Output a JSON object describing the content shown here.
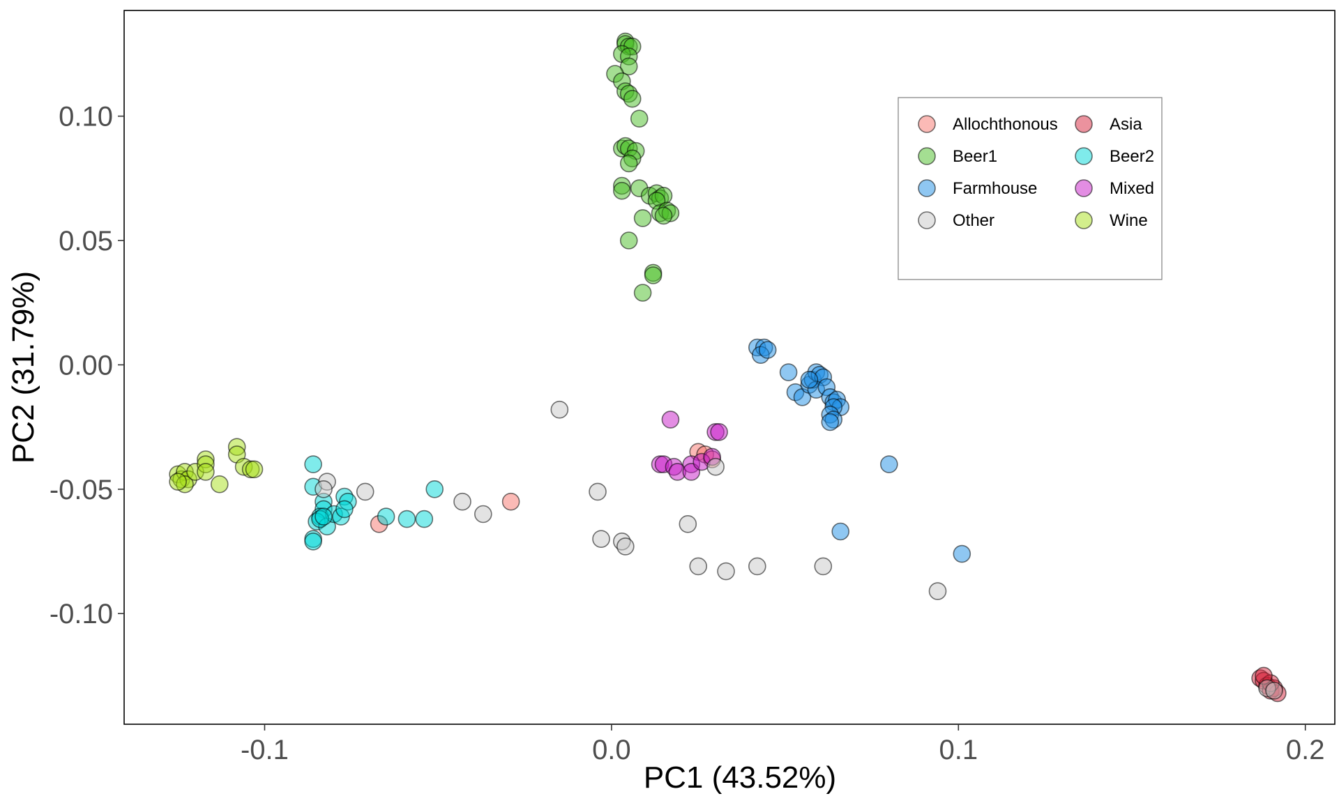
{
  "chart_data": {
    "type": "scatter",
    "title": "",
    "xlabel": "PC1 (43.52%)",
    "ylabel": "PC2 (31.79%)",
    "xlim": [
      -0.1405,
      0.2085
    ],
    "ylim": [
      -0.1445,
      0.1425
    ],
    "xticks": [
      -0.1,
      0.0,
      0.1,
      0.2
    ],
    "xtick_labels": [
      "-0.1",
      "0.0",
      "0.1",
      "0.2"
    ],
    "yticks": [
      -0.1,
      -0.05,
      0.0,
      0.05,
      0.1
    ],
    "ytick_labels": [
      "-0.10",
      "-0.05",
      "0.00",
      "0.05",
      "0.10"
    ],
    "grid": false,
    "legend_position": "top-right",
    "point_alpha": 0.5,
    "series": [
      {
        "name": "Allochthonous",
        "color": "#F8766D",
        "points": [
          [
            -0.067,
            -0.064
          ],
          [
            -0.029,
            -0.055
          ],
          [
            0.025,
            -0.035
          ],
          [
            0.027,
            -0.036
          ],
          [
            0.029,
            -0.038
          ]
        ]
      },
      {
        "name": "Asia",
        "color": "#D7263D",
        "points": [
          [
            0.187,
            -0.126
          ],
          [
            0.188,
            -0.127
          ],
          [
            0.189,
            -0.129
          ],
          [
            0.19,
            -0.131
          ],
          [
            0.191,
            -0.13
          ],
          [
            0.192,
            -0.132
          ],
          [
            0.19,
            -0.128
          ],
          [
            0.188,
            -0.125
          ]
        ]
      },
      {
        "name": "Beer1",
        "color": "#49BE25",
        "points": [
          [
            0.004,
            0.13
          ],
          [
            0.004,
            0.129
          ],
          [
            0.005,
            0.128
          ],
          [
            0.006,
            0.128
          ],
          [
            0.003,
            0.125
          ],
          [
            0.005,
            0.124
          ],
          [
            0.005,
            0.12
          ],
          [
            0.001,
            0.117
          ],
          [
            0.003,
            0.114
          ],
          [
            0.004,
            0.11
          ],
          [
            0.005,
            0.109
          ],
          [
            0.006,
            0.107
          ],
          [
            0.008,
            0.099
          ],
          [
            0.003,
            0.087
          ],
          [
            0.004,
            0.088
          ],
          [
            0.005,
            0.087
          ],
          [
            0.007,
            0.086
          ],
          [
            0.006,
            0.083
          ],
          [
            0.005,
            0.081
          ],
          [
            0.003,
            0.072
          ],
          [
            0.003,
            0.07
          ],
          [
            0.008,
            0.071
          ],
          [
            0.011,
            0.068
          ],
          [
            0.013,
            0.069
          ],
          [
            0.014,
            0.067
          ],
          [
            0.015,
            0.068
          ],
          [
            0.013,
            0.066
          ],
          [
            0.014,
            0.061
          ],
          [
            0.016,
            0.062
          ],
          [
            0.017,
            0.061
          ],
          [
            0.015,
            0.06
          ],
          [
            0.009,
            0.059
          ],
          [
            0.005,
            0.05
          ],
          [
            0.012,
            0.037
          ],
          [
            0.012,
            0.036
          ],
          [
            0.009,
            0.029
          ]
        ]
      },
      {
        "name": "Beer2",
        "color": "#00D7D7",
        "points": [
          [
            -0.086,
            -0.04
          ],
          [
            -0.086,
            -0.049
          ],
          [
            -0.083,
            -0.055
          ],
          [
            -0.083,
            -0.058
          ],
          [
            -0.084,
            -0.061
          ],
          [
            -0.085,
            -0.063
          ],
          [
            -0.082,
            -0.065
          ],
          [
            -0.08,
            -0.06
          ],
          [
            -0.078,
            -0.061
          ],
          [
            -0.077,
            -0.053
          ],
          [
            -0.076,
            -0.055
          ],
          [
            -0.077,
            -0.058
          ],
          [
            -0.084,
            -0.062
          ],
          [
            -0.083,
            -0.061
          ],
          [
            -0.086,
            -0.07
          ],
          [
            -0.086,
            -0.071
          ],
          [
            -0.065,
            -0.061
          ],
          [
            -0.054,
            -0.062
          ],
          [
            -0.051,
            -0.05
          ],
          [
            -0.059,
            -0.062
          ]
        ]
      },
      {
        "name": "Farmhouse",
        "color": "#1F8FE5",
        "points": [
          [
            0.042,
            0.007
          ],
          [
            0.044,
            0.007
          ],
          [
            0.043,
            0.004
          ],
          [
            0.045,
            0.006
          ],
          [
            0.051,
            -0.003
          ],
          [
            0.053,
            -0.011
          ],
          [
            0.055,
            -0.013
          ],
          [
            0.057,
            -0.008
          ],
          [
            0.058,
            -0.006
          ],
          [
            0.059,
            -0.003
          ],
          [
            0.06,
            -0.004
          ],
          [
            0.061,
            -0.005
          ],
          [
            0.059,
            -0.01
          ],
          [
            0.057,
            -0.006
          ],
          [
            0.062,
            -0.009
          ],
          [
            0.063,
            -0.013
          ],
          [
            0.064,
            -0.015
          ],
          [
            0.065,
            -0.014
          ],
          [
            0.066,
            -0.017
          ],
          [
            0.064,
            -0.017
          ],
          [
            0.063,
            -0.02
          ],
          [
            0.064,
            -0.022
          ],
          [
            0.063,
            -0.023
          ],
          [
            0.08,
            -0.04
          ],
          [
            0.066,
            -0.067
          ],
          [
            0.101,
            -0.076
          ]
        ]
      },
      {
        "name": "Mixed",
        "color": "#C71CC7",
        "points": [
          [
            0.017,
            -0.022
          ],
          [
            0.014,
            -0.04
          ],
          [
            0.015,
            -0.04
          ],
          [
            0.018,
            -0.041
          ],
          [
            0.019,
            -0.043
          ],
          [
            0.023,
            -0.04
          ],
          [
            0.023,
            -0.043
          ],
          [
            0.026,
            -0.039
          ],
          [
            0.029,
            -0.037
          ],
          [
            0.03,
            -0.027
          ],
          [
            0.031,
            -0.027
          ]
        ]
      },
      {
        "name": "Other",
        "color": "#C8C8C8",
        "points": [
          [
            -0.015,
            -0.018
          ],
          [
            -0.082,
            -0.047
          ],
          [
            -0.083,
            -0.05
          ],
          [
            -0.071,
            -0.051
          ],
          [
            -0.043,
            -0.055
          ],
          [
            -0.037,
            -0.06
          ],
          [
            -0.004,
            -0.051
          ],
          [
            -0.003,
            -0.07
          ],
          [
            0.003,
            -0.071
          ],
          [
            0.004,
            -0.073
          ],
          [
            0.022,
            -0.064
          ],
          [
            0.025,
            -0.081
          ],
          [
            0.03,
            -0.041
          ],
          [
            0.033,
            -0.083
          ],
          [
            0.042,
            -0.081
          ],
          [
            0.061,
            -0.081
          ],
          [
            0.094,
            -0.091
          ],
          [
            0.189,
            -0.13
          ],
          [
            0.191,
            -0.131
          ]
        ]
      },
      {
        "name": "Wine",
        "color": "#A8E01A",
        "points": [
          [
            -0.125,
            -0.044
          ],
          [
            -0.124,
            -0.046
          ],
          [
            -0.123,
            -0.043
          ],
          [
            -0.122,
            -0.046
          ],
          [
            -0.123,
            -0.048
          ],
          [
            -0.125,
            -0.047
          ],
          [
            -0.12,
            -0.043
          ],
          [
            -0.117,
            -0.038
          ],
          [
            -0.117,
            -0.04
          ],
          [
            -0.117,
            -0.043
          ],
          [
            -0.113,
            -0.048
          ],
          [
            -0.108,
            -0.033
          ],
          [
            -0.108,
            -0.036
          ],
          [
            -0.106,
            -0.041
          ],
          [
            -0.104,
            -0.042
          ],
          [
            -0.103,
            -0.042
          ]
        ]
      }
    ]
  }
}
